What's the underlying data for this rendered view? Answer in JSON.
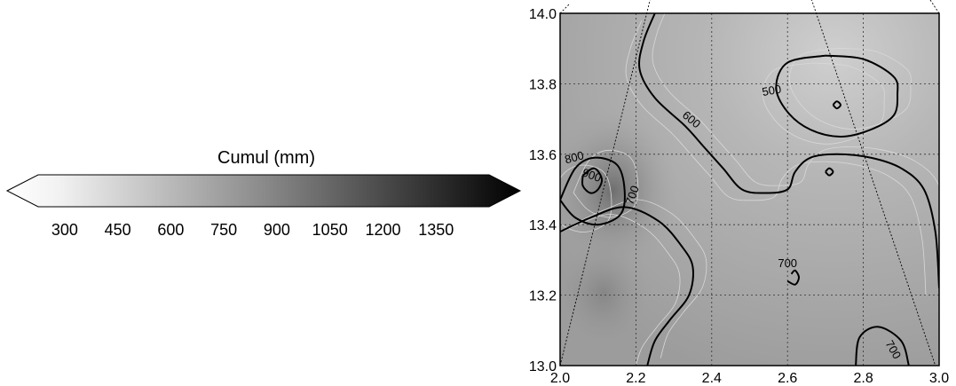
{
  "colorbar": {
    "title": "Cumul (mm)",
    "ticks": [
      "300",
      "450",
      "600",
      "750",
      "900",
      "1050",
      "1200",
      "1350"
    ],
    "range": [
      225,
      1500
    ],
    "extend": "both",
    "colormap": [
      "#ffffff",
      "#000000"
    ]
  },
  "chart_data": {
    "type": "contour",
    "title": "",
    "xlabel": "",
    "ylabel": "",
    "xlim": [
      2.0,
      3.0
    ],
    "ylim": [
      13.0,
      14.0
    ],
    "x_ticks": [
      "2.0",
      "2.2",
      "2.4",
      "2.6",
      "2.8",
      "3.0"
    ],
    "y_ticks": [
      "13.0",
      "13.2",
      "13.4",
      "13.6",
      "13.8",
      "14.0"
    ],
    "grid": true,
    "contour_labels": [
      "500",
      "600",
      "700",
      "700",
      "800",
      "900",
      "700"
    ],
    "contour_lines": [
      {
        "level": 600,
        "points": [
          [
            2.25,
            14.0
          ],
          [
            2.22,
            13.92
          ],
          [
            2.21,
            13.84
          ],
          [
            2.25,
            13.76
          ],
          [
            2.33,
            13.68
          ],
          [
            2.38,
            13.62
          ],
          [
            2.43,
            13.56
          ],
          [
            2.48,
            13.5
          ],
          [
            2.54,
            13.49
          ],
          [
            2.6,
            13.5
          ],
          [
            2.62,
            13.55
          ],
          [
            2.66,
            13.59
          ],
          [
            2.73,
            13.6
          ],
          [
            2.82,
            13.59
          ],
          [
            2.9,
            13.56
          ],
          [
            2.96,
            13.5
          ],
          [
            2.99,
            13.38
          ],
          [
            3.0,
            13.22
          ]
        ]
      },
      {
        "level": 600,
        "points": [
          [
            2.0,
            13.38
          ],
          [
            2.08,
            13.42
          ],
          [
            2.17,
            13.45
          ],
          [
            2.26,
            13.41
          ],
          [
            2.32,
            13.34
          ],
          [
            2.35,
            13.28
          ],
          [
            2.34,
            13.2
          ],
          [
            2.29,
            13.13
          ],
          [
            2.25,
            13.07
          ],
          [
            2.23,
            13.0
          ]
        ]
      },
      {
        "level": 500,
        "points": [
          [
            2.7,
            13.88
          ],
          [
            2.8,
            13.87
          ],
          [
            2.88,
            13.82
          ],
          [
            2.89,
            13.77
          ],
          [
            2.88,
            13.71
          ],
          [
            2.82,
            13.67
          ],
          [
            2.74,
            13.65
          ],
          [
            2.66,
            13.67
          ],
          [
            2.6,
            13.72
          ],
          [
            2.57,
            13.79
          ],
          [
            2.6,
            13.86
          ],
          [
            2.7,
            13.88
          ]
        ]
      },
      {
        "level": 700,
        "points": [
          [
            2.0,
            13.47
          ],
          [
            2.04,
            13.56
          ],
          [
            2.09,
            13.59
          ],
          [
            2.15,
            13.57
          ],
          [
            2.17,
            13.5
          ],
          [
            2.16,
            13.43
          ],
          [
            2.1,
            13.4
          ],
          [
            2.04,
            13.42
          ],
          [
            2.0,
            13.47
          ]
        ]
      },
      {
        "level": 800,
        "points": [
          [
            2.06,
            13.54
          ],
          [
            2.09,
            13.56
          ],
          [
            2.11,
            13.53
          ],
          [
            2.1,
            13.5
          ],
          [
            2.08,
            13.49
          ],
          [
            2.06,
            13.51
          ],
          [
            2.06,
            13.54
          ]
        ]
      },
      {
        "level": 700,
        "points": [
          [
            2.78,
            13.0
          ],
          [
            2.79,
            13.08
          ],
          [
            2.84,
            13.11
          ],
          [
            2.9,
            13.07
          ],
          [
            2.92,
            13.0
          ]
        ]
      },
      {
        "level": 700,
        "points": [
          [
            2.6,
            13.24
          ],
          [
            2.62,
            13.23
          ],
          [
            2.63,
            13.25
          ],
          [
            2.62,
            13.27
          ],
          [
            2.61,
            13.26
          ]
        ]
      },
      {
        "level": 700,
        "points": [
          [
            2.7,
            13.55
          ],
          [
            2.71,
            13.56
          ],
          [
            2.72,
            13.55
          ],
          [
            2.71,
            13.54
          ],
          [
            2.7,
            13.55
          ]
        ]
      },
      {
        "level": 500,
        "points": [
          [
            2.72,
            13.74
          ],
          [
            2.73,
            13.75
          ],
          [
            2.74,
            13.74
          ],
          [
            2.73,
            13.73
          ],
          [
            2.72,
            13.74
          ]
        ]
      }
    ],
    "projection_lines": [
      {
        "points": [
          [
            2.0,
            13.0
          ],
          [
            2.24,
            14.05
          ]
        ]
      },
      {
        "points": [
          [
            2.66,
            14.05
          ],
          [
            2.99,
            13.0
          ]
        ]
      }
    ]
  }
}
